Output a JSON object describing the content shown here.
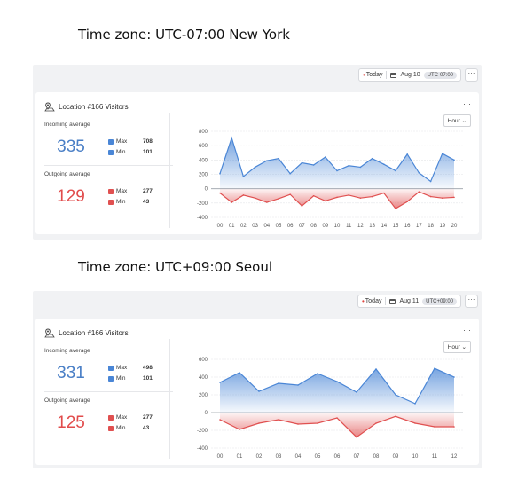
{
  "panels": [
    {
      "heading": "Time zone: UTC-07:00 New York",
      "toolbar": {
        "today_label": "Today",
        "date_label": "Aug 10",
        "tz_badge": "UTC-07:00",
        "more_label": "···"
      },
      "card": {
        "title": "Location #166 Visitors",
        "more_label": "···",
        "incoming": {
          "label": "Incoming average",
          "value": "335",
          "max_label": "Max",
          "max_value": "708",
          "min_label": "Min",
          "min_value": "101"
        },
        "outgoing": {
          "label": "Outgoing average",
          "value": "129",
          "max_label": "Max",
          "max_value": "277",
          "min_label": "Min",
          "min_value": "43"
        },
        "granularity": "Hour"
      },
      "chart_data": {
        "type": "area",
        "x": [
          "00",
          "01",
          "02",
          "03",
          "04",
          "05",
          "06",
          "07",
          "08",
          "09",
          "10",
          "11",
          "12",
          "13",
          "14",
          "15",
          "16",
          "17",
          "18",
          "19",
          "20"
        ],
        "y_ticks": [
          "800",
          "600",
          "400",
          "200",
          "0",
          "-200",
          "-400"
        ],
        "ylim": [
          -400,
          800
        ],
        "series": [
          {
            "values": [
              210,
              708,
              170,
              300,
              390,
              420,
              210,
              360,
              330,
              440,
              250,
              320,
              300,
              420,
              340,
              250,
              480,
              220,
              101,
              490,
              400
            ],
            "color": "#4a86d6"
          },
          {
            "values": [
              -60,
              -190,
              -90,
              -130,
              -190,
              -140,
              -80,
              -240,
              -100,
              -170,
              -120,
              -90,
              -130,
              -110,
              -60,
              -277,
              -180,
              -43,
              -110,
              -130,
              -120
            ],
            "color": "#e05050"
          }
        ]
      }
    },
    {
      "heading": "Time zone: UTC+09:00 Seoul",
      "toolbar": {
        "today_label": "Today",
        "date_label": "Aug 11",
        "tz_badge": "UTC+09:00",
        "more_label": "···"
      },
      "card": {
        "title": "Location #166 Visitors",
        "more_label": "···",
        "incoming": {
          "label": "Incoming average",
          "value": "331",
          "max_label": "Max",
          "max_value": "498",
          "min_label": "Min",
          "min_value": "101"
        },
        "outgoing": {
          "label": "Outgoing average",
          "value": "125",
          "max_label": "Max",
          "max_value": "277",
          "min_label": "Min",
          "min_value": "43"
        },
        "granularity": "Hour"
      },
      "chart_data": {
        "type": "area",
        "x": [
          "00",
          "01",
          "02",
          "03",
          "04",
          "05",
          "06",
          "07",
          "08",
          "09",
          "10",
          "11",
          "12"
        ],
        "y_ticks": [
          "600",
          "400",
          "200",
          "0",
          "-200",
          "-400"
        ],
        "ylim": [
          -400,
          600
        ],
        "series": [
          {
            "values": [
              340,
              450,
              240,
              330,
              310,
              440,
              350,
              230,
              490,
              200,
              101,
              498,
              400
            ],
            "color": "#4a86d6"
          },
          {
            "values": [
              -80,
              -190,
              -120,
              -80,
              -130,
              -120,
              -60,
              -277,
              -120,
              -43,
              -120,
              -160,
              -160
            ],
            "color": "#e05050"
          }
        ]
      }
    }
  ]
}
